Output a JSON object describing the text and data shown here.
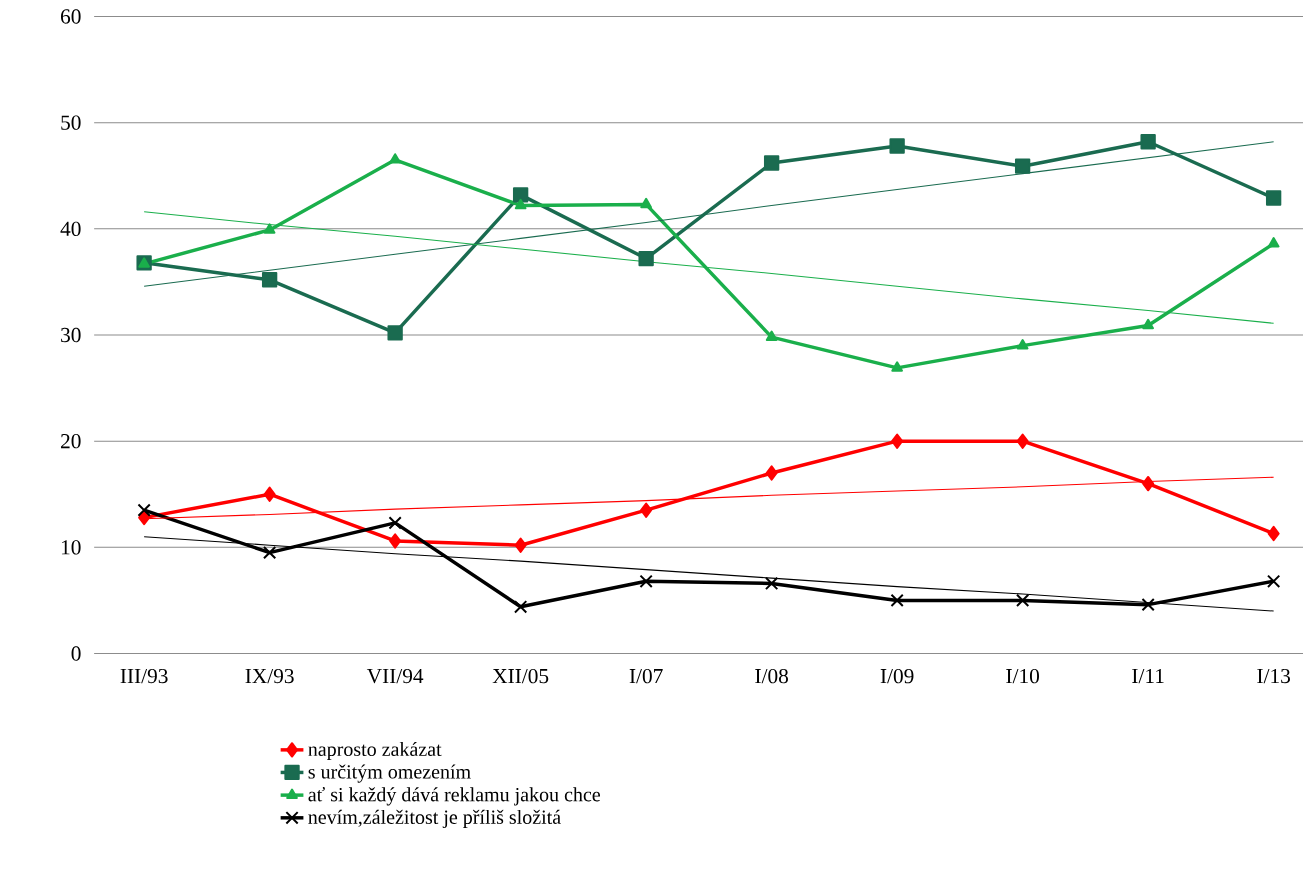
{
  "chart_data": {
    "type": "line",
    "categories": [
      "III/93",
      "IX/93",
      "VII/94",
      "XII/05",
      "I/07",
      "I/08",
      "I/09",
      "I/10",
      "I/11",
      "I/13"
    ],
    "series": [
      {
        "name": "naprosto zakázat",
        "color": "#ff0000",
        "marker": "diamond",
        "values": [
          12.8,
          15.0,
          10.6,
          10.2,
          13.5,
          17.0,
          20.0,
          20.0,
          16.0,
          11.3
        ]
      },
      {
        "name": "s určitým omezením",
        "color": "#1a6b50",
        "marker": "square",
        "values": [
          36.8,
          35.2,
          30.2,
          43.2,
          37.2,
          46.2,
          47.8,
          45.9,
          48.2,
          42.9
        ]
      },
      {
        "name": "ať si každý dává reklamu jakou chce",
        "color": "#1aaf4b",
        "marker": "triangle",
        "values": [
          36.7,
          39.9,
          46.5,
          42.2,
          42.3,
          29.8,
          26.9,
          29.0,
          30.9,
          38.6
        ]
      },
      {
        "name": "nevím,záležitost je příliš složitá",
        "color": "#000000",
        "marker": "cross",
        "values": [
          13.5,
          9.5,
          12.3,
          4.4,
          6.8,
          6.6,
          5.0,
          5.0,
          4.6,
          6.8
        ]
      },
      {
        "color": "#ff0000",
        "marker": "none",
        "values": [
          12.7,
          13.1,
          13.6,
          14.0,
          14.4,
          14.9,
          15.3,
          15.7,
          16.2,
          16.6
        ]
      },
      {
        "color": "#1a6b50",
        "marker": "none",
        "values": [
          34.6,
          36.1,
          37.6,
          39.1,
          40.6,
          42.2,
          43.7,
          45.2,
          46.7,
          48.2
        ]
      },
      {
        "color": "#1aaf4b",
        "marker": "none",
        "values": [
          41.6,
          40.4,
          39.3,
          38.1,
          36.9,
          35.8,
          34.6,
          33.4,
          32.3,
          31.1
        ]
      },
      {
        "color": "#000000",
        "marker": "none",
        "values": [
          11.0,
          10.2,
          9.4,
          8.7,
          7.9,
          7.1,
          6.3,
          5.6,
          4.8,
          4.0
        ]
      }
    ],
    "ylim": [
      0,
      60
    ],
    "yticks": [
      0,
      10,
      20,
      30,
      40,
      50,
      60
    ],
    "grid": "y",
    "legend": "bottom"
  }
}
